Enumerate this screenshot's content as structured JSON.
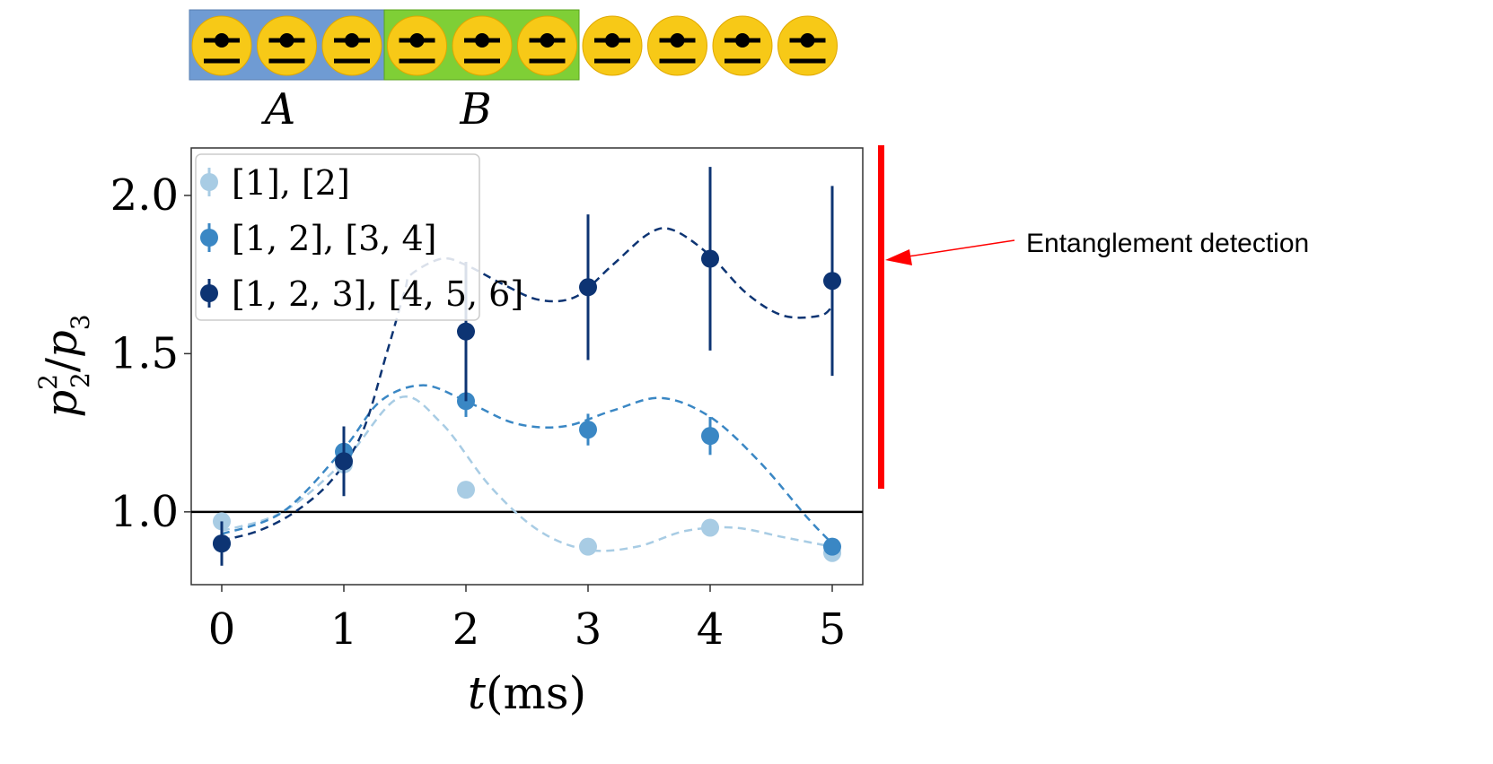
{
  "ions": {
    "count": 10,
    "region_a": {
      "label": "A",
      "ion_count": 3,
      "color": "#6f9bd3"
    },
    "region_b": {
      "label": "B",
      "ion_count": 3,
      "color": "#7fcf36"
    },
    "ion_color": "#f7c917",
    "ion_symbol_color": "#000000"
  },
  "annotation": {
    "text": "Entanglement detection",
    "bar_color": "#ff0000",
    "arrow_color": "#ff0000"
  },
  "chart_data": {
    "type": "scatter",
    "x_label_var": "t",
    "x_label_unit": "(ms)",
    "y_label_num": "p",
    "y_label_num_sub": "2",
    "y_label_num_sup": "2",
    "y_label_den": "p",
    "y_label_den_sub": "3",
    "xlim": [
      -0.25,
      5.25
    ],
    "ylim": [
      0.77,
      2.15
    ],
    "x_ticks": [
      0,
      1,
      2,
      3,
      4,
      5
    ],
    "x_tick_labels": [
      "0",
      "1",
      "2",
      "3",
      "4",
      "5"
    ],
    "y_ticks": [
      1.0,
      1.5,
      2.0
    ],
    "y_tick_labels": [
      "1.0",
      "1.5",
      "2.0"
    ],
    "reference_line_y": 1.0,
    "grid": false,
    "legend_position": "top-left",
    "series": [
      {
        "name": "[1], [2]",
        "color": "#a8cce4",
        "x": [
          0,
          1,
          2,
          3,
          4,
          5
        ],
        "y": [
          0.97,
          1.15,
          1.07,
          0.89,
          0.95,
          0.87
        ],
        "yerr": [
          0.01,
          0.03,
          0.01,
          0.01,
          0.01,
          0.01
        ],
        "fit": [
          [
            0,
            0.94
          ],
          [
            0.5,
            1.0
          ],
          [
            1,
            1.16
          ],
          [
            1.45,
            1.36
          ],
          [
            1.8,
            1.28
          ],
          [
            2.2,
            1.08
          ],
          [
            2.6,
            0.94
          ],
          [
            3,
            0.88
          ],
          [
            3.4,
            0.89
          ],
          [
            3.8,
            0.94
          ],
          [
            4.2,
            0.95
          ],
          [
            4.6,
            0.92
          ],
          [
            5,
            0.89
          ]
        ]
      },
      {
        "name": "[1, 2], [3, 4]",
        "color": "#3a87c4",
        "x": [
          0,
          1,
          2,
          3,
          4,
          5
        ],
        "y": [
          0.9,
          1.19,
          1.35,
          1.26,
          1.24,
          0.89
        ],
        "yerr": [
          0.02,
          0.07,
          0.05,
          0.05,
          0.06,
          0.02
        ],
        "fit": [
          [
            0,
            0.93
          ],
          [
            0.5,
            1.0
          ],
          [
            1,
            1.2
          ],
          [
            1.3,
            1.35
          ],
          [
            1.65,
            1.4
          ],
          [
            2,
            1.35
          ],
          [
            2.4,
            1.28
          ],
          [
            2.8,
            1.27
          ],
          [
            3.2,
            1.32
          ],
          [
            3.6,
            1.36
          ],
          [
            4,
            1.3
          ],
          [
            4.4,
            1.16
          ],
          [
            4.8,
            0.98
          ],
          [
            5,
            0.9
          ]
        ]
      },
      {
        "name": "[1, 2, 3], [4, 5, 6]",
        "color": "#0d3473",
        "x": [
          0,
          1,
          2,
          3,
          4,
          5
        ],
        "y": [
          0.9,
          1.16,
          1.57,
          1.71,
          1.8,
          1.73
        ],
        "yerr": [
          0.07,
          0.11,
          0.22,
          0.23,
          0.29,
          0.3
        ],
        "fit": [
          [
            0,
            0.91
          ],
          [
            0.3,
            0.94
          ],
          [
            0.6,
            1.0
          ],
          [
            0.9,
            1.1
          ],
          [
            1.15,
            1.25
          ],
          [
            1.35,
            1.5
          ],
          [
            1.5,
            1.7
          ],
          [
            1.55,
            1.75
          ],
          [
            1.8,
            1.8
          ],
          [
            2,
            1.78
          ],
          [
            2.3,
            1.72
          ],
          [
            2.6,
            1.67
          ],
          [
            2.9,
            1.68
          ],
          [
            3.2,
            1.78
          ],
          [
            3.5,
            1.88
          ],
          [
            3.7,
            1.89
          ],
          [
            4,
            1.81
          ],
          [
            4.3,
            1.69
          ],
          [
            4.6,
            1.62
          ],
          [
            4.9,
            1.62
          ],
          [
            5,
            1.65
          ]
        ]
      }
    ]
  }
}
